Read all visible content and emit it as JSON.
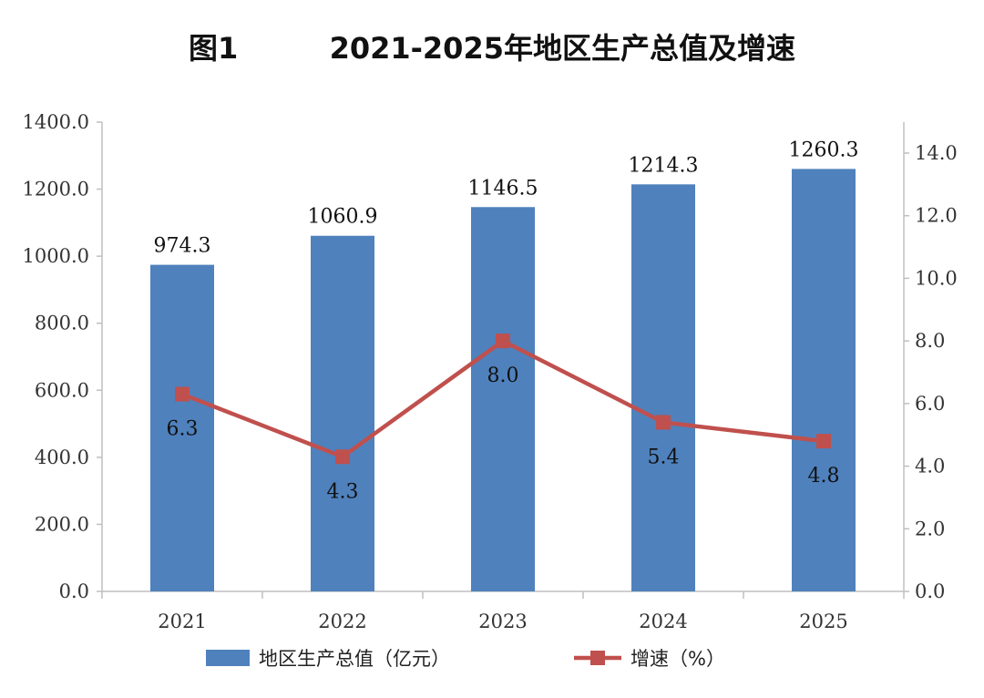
{
  "title_prefix": "图1",
  "title_main": "2021-2025年地区生产总值及增速",
  "chart_data": {
    "type": "bar",
    "categories": [
      "2021",
      "2022",
      "2023",
      "2024",
      "2025"
    ],
    "series": [
      {
        "name": "地区生产总值（亿元）",
        "type": "bar",
        "axis": "left",
        "color": "#4f81bd",
        "values": [
          974.3,
          1060.9,
          1146.5,
          1214.3,
          1260.3
        ],
        "labels": [
          "974.3",
          "1060.9",
          "1146.5",
          "1214.3",
          "1260.3"
        ]
      },
      {
        "name": "增速（%）",
        "type": "line",
        "axis": "right",
        "color": "#c0504d",
        "values": [
          6.3,
          4.3,
          8.0,
          5.4,
          4.8
        ],
        "labels": [
          "6.3",
          "4.3",
          "8.0",
          "5.4",
          "4.8"
        ]
      }
    ],
    "y_left": {
      "ylim": [
        0,
        1400
      ],
      "ticks": [
        "0.0",
        "200.0",
        "400.0",
        "600.0",
        "800.0",
        "1000.0",
        "1200.0",
        "1400.0"
      ]
    },
    "y_right": {
      "ylim": [
        0,
        15
      ],
      "ticks": [
        "0.0",
        "2.0",
        "4.0",
        "6.0",
        "8.0",
        "10.0",
        "12.0",
        "14.0"
      ]
    },
    "grid": false,
    "legend": "bottom"
  }
}
